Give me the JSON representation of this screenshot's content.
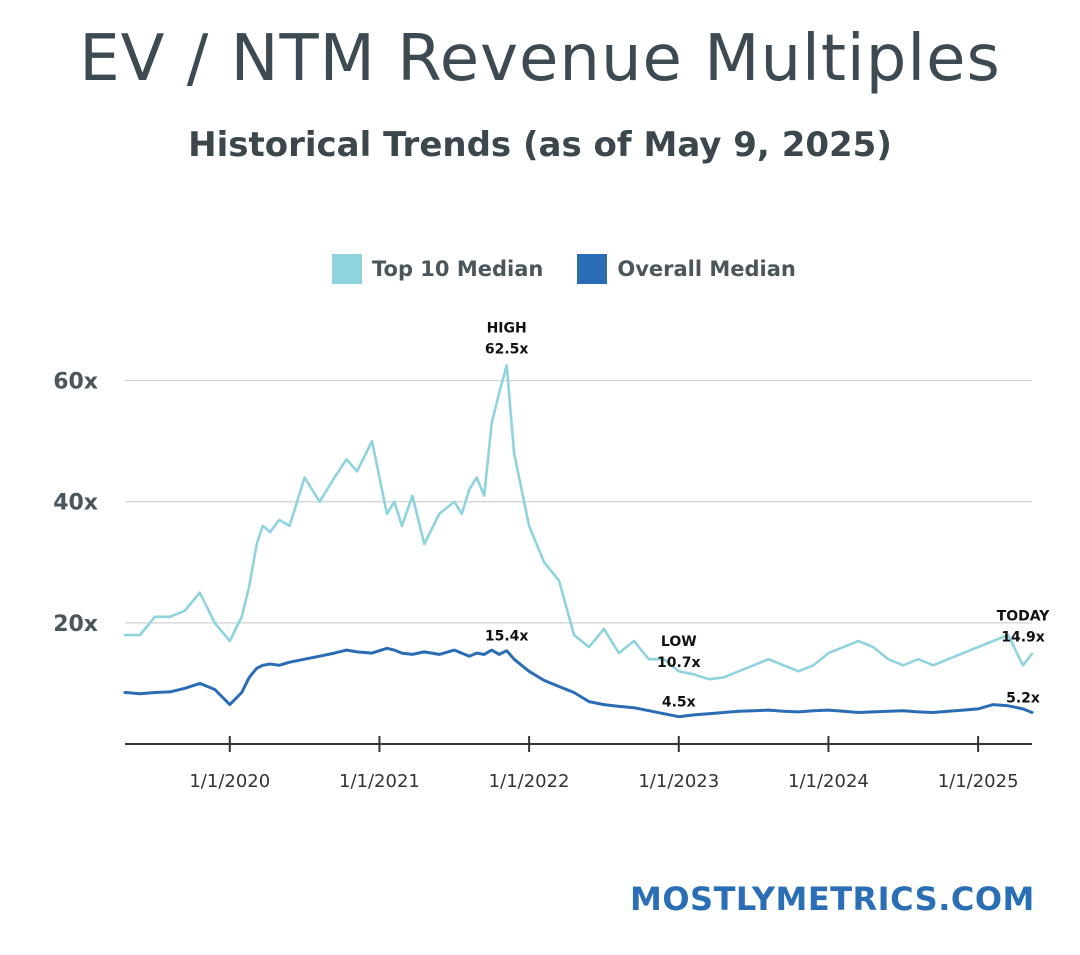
{
  "title": "EV / NTM Revenue Multiples",
  "subtitle": {
    "prefix": "Historical Trends (as of",
    "date": "May 9, 2025",
    "suffix": ")"
  },
  "footer": "MOSTLYMETRICS.COM",
  "colors": {
    "top10": "#8fd3de",
    "overall": "#2a6db4",
    "grid": "#d0d0d0",
    "axis": "#333333"
  },
  "chart_data": {
    "type": "line",
    "title": "EV / NTM Revenue Multiples",
    "xlabel": "",
    "ylabel": "",
    "ylim": [
      0,
      70
    ],
    "xlim": [
      2019.3,
      2025.36
    ],
    "yticks": [
      {
        "value": 20,
        "label": "20x"
      },
      {
        "value": 40,
        "label": "40x"
      },
      {
        "value": 60,
        "label": "60x"
      }
    ],
    "xticks": [
      {
        "value": 2020,
        "label": "1/1/2020"
      },
      {
        "value": 2021,
        "label": "1/1/2021"
      },
      {
        "value": 2022,
        "label": "1/1/2022"
      },
      {
        "value": 2023,
        "label": "1/1/2023"
      },
      {
        "value": 2024,
        "label": "1/1/2024"
      },
      {
        "value": 2025,
        "label": "1/1/2025"
      }
    ],
    "legend": {
      "position": "top",
      "entries": [
        "Top 10 Median",
        "Overall Median"
      ]
    },
    "series": [
      {
        "name": "Top 10 Median",
        "key": "top10",
        "x": [
          2019.3,
          2019.4,
          2019.5,
          2019.6,
          2019.7,
          2019.8,
          2019.9,
          2020.0,
          2020.08,
          2020.13,
          2020.18,
          2020.22,
          2020.27,
          2020.33,
          2020.4,
          2020.5,
          2020.6,
          2020.7,
          2020.78,
          2020.85,
          2020.95,
          2021.05,
          2021.1,
          2021.15,
          2021.22,
          2021.3,
          2021.4,
          2021.5,
          2021.55,
          2021.6,
          2021.65,
          2021.7,
          2021.75,
          2021.8,
          2021.85,
          2021.9,
          2021.95,
          2022.0,
          2022.1,
          2022.2,
          2022.3,
          2022.4,
          2022.5,
          2022.6,
          2022.7,
          2022.8,
          2022.9,
          2023.0,
          2023.1,
          2023.2,
          2023.3,
          2023.4,
          2023.5,
          2023.6,
          2023.7,
          2023.8,
          2023.9,
          2024.0,
          2024.1,
          2024.2,
          2024.3,
          2024.4,
          2024.5,
          2024.6,
          2024.7,
          2024.8,
          2024.9,
          2025.0,
          2025.1,
          2025.2,
          2025.3,
          2025.36
        ],
        "y": [
          18,
          18,
          21,
          21,
          22,
          25,
          20,
          17,
          21,
          26,
          33,
          36,
          35,
          37,
          36,
          44,
          40,
          44,
          47,
          45,
          50,
          38,
          40,
          36,
          41,
          33,
          38,
          40,
          38,
          42,
          44,
          41,
          53,
          58,
          62.5,
          48,
          42,
          36,
          30,
          27,
          18,
          16,
          19,
          15,
          17,
          14,
          14,
          12,
          11.5,
          10.7,
          11,
          12,
          13,
          14,
          13,
          12,
          13,
          15,
          16,
          17,
          16,
          14,
          13,
          14,
          13,
          14,
          15,
          16,
          17,
          18,
          13,
          14.9
        ],
        "annotations": [
          {
            "x": 2021.85,
            "y": 62.5,
            "lines": [
              "HIGH",
              "62.5x"
            ]
          },
          {
            "x": 2023.0,
            "y": 10.7,
            "lines": [
              "LOW",
              "10.7x"
            ]
          },
          {
            "x": 2025.3,
            "y": 14.9,
            "lines": [
              "TODAY",
              "14.9x"
            ]
          }
        ]
      },
      {
        "name": "Overall Median",
        "key": "overall",
        "x": [
          2019.3,
          2019.4,
          2019.5,
          2019.6,
          2019.7,
          2019.8,
          2019.9,
          2020.0,
          2020.08,
          2020.13,
          2020.18,
          2020.22,
          2020.27,
          2020.33,
          2020.4,
          2020.5,
          2020.6,
          2020.7,
          2020.78,
          2020.85,
          2020.95,
          2021.05,
          2021.1,
          2021.15,
          2021.22,
          2021.3,
          2021.4,
          2021.5,
          2021.55,
          2021.6,
          2021.65,
          2021.7,
          2021.75,
          2021.8,
          2021.85,
          2021.9,
          2021.95,
          2022.0,
          2022.1,
          2022.2,
          2022.3,
          2022.4,
          2022.5,
          2022.6,
          2022.7,
          2022.8,
          2022.9,
          2023.0,
          2023.1,
          2023.2,
          2023.3,
          2023.4,
          2023.5,
          2023.6,
          2023.7,
          2023.8,
          2023.9,
          2024.0,
          2024.1,
          2024.2,
          2024.3,
          2024.4,
          2024.5,
          2024.6,
          2024.7,
          2024.8,
          2024.9,
          2025.0,
          2025.1,
          2025.2,
          2025.3,
          2025.36
        ],
        "y": [
          8.5,
          8.3,
          8.5,
          8.6,
          9.2,
          10,
          9,
          6.5,
          8.5,
          11,
          12.5,
          13,
          13.2,
          13,
          13.5,
          14,
          14.5,
          15,
          15.5,
          15.2,
          15,
          15.8,
          15.5,
          15,
          14.8,
          15.2,
          14.8,
          15.5,
          15,
          14.5,
          15,
          14.8,
          15.5,
          14.8,
          15.4,
          14,
          13,
          12,
          10.5,
          9.5,
          8.5,
          7,
          6.5,
          6.2,
          6,
          5.5,
          5,
          4.5,
          4.8,
          5,
          5.2,
          5.4,
          5.5,
          5.6,
          5.4,
          5.3,
          5.5,
          5.6,
          5.4,
          5.2,
          5.3,
          5.4,
          5.5,
          5.3,
          5.2,
          5.4,
          5.6,
          5.8,
          6.5,
          6.3,
          5.8,
          5.2
        ],
        "annotations": [
          {
            "x": 2021.85,
            "y": 15.4,
            "lines": [
              "15.4x"
            ]
          },
          {
            "x": 2023.0,
            "y": 4.5,
            "lines": [
              "4.5x"
            ]
          },
          {
            "x": 2025.3,
            "y": 5.2,
            "lines": [
              "5.2x"
            ]
          }
        ]
      }
    ]
  }
}
